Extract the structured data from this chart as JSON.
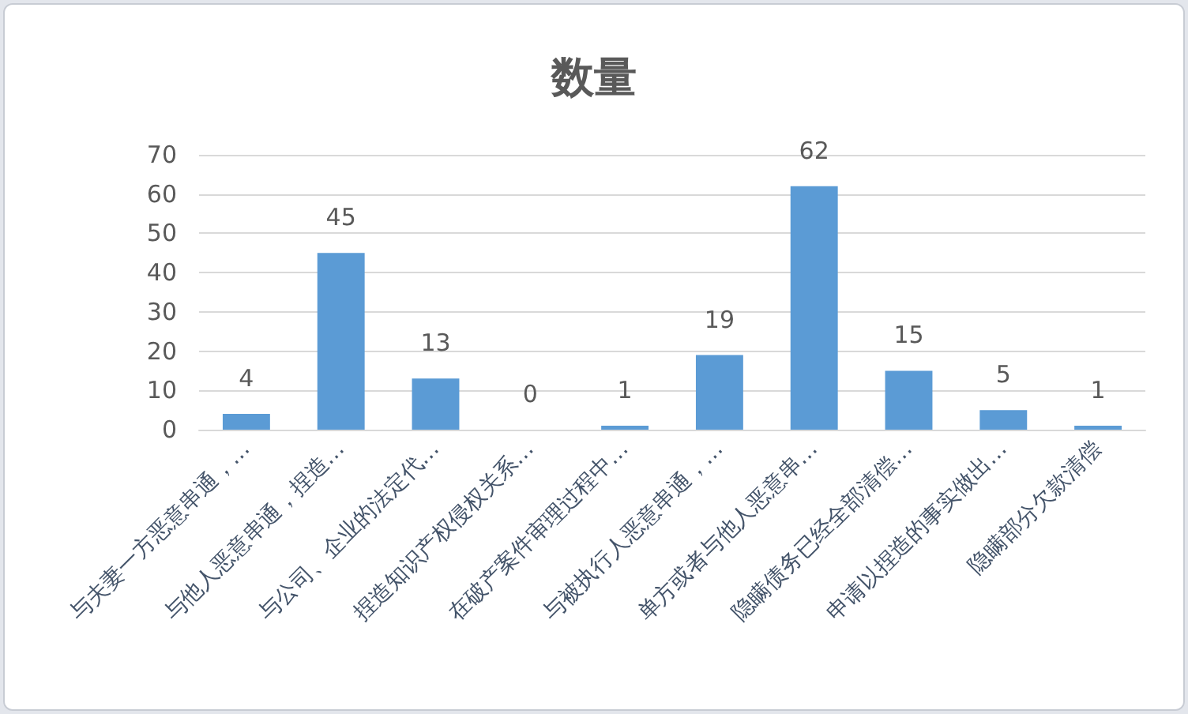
{
  "chart_data": {
    "type": "bar",
    "title": "数量",
    "categories": [
      "与夫妻一方恶意串通，…",
      "与他人恶意串通，捏造…",
      "与公司、企业的法定代…",
      "捏造知识产权侵权关系…",
      "在破产案件审理过程中…",
      "与被执行人恶意串通，…",
      "单方或者与他人恶意串…",
      "隐瞒债务已经全部清偿…",
      "申请以捏造的事实做出…",
      "隐瞒部分欠款清偿"
    ],
    "values": [
      4,
      45,
      13,
      0,
      1,
      19,
      62,
      15,
      5,
      1
    ],
    "color": "#5b9bd5",
    "ylim": [
      0,
      70
    ],
    "yticks": [
      0,
      10,
      20,
      30,
      40,
      50,
      60,
      70
    ],
    "grid": "y",
    "data_labels": true
  }
}
